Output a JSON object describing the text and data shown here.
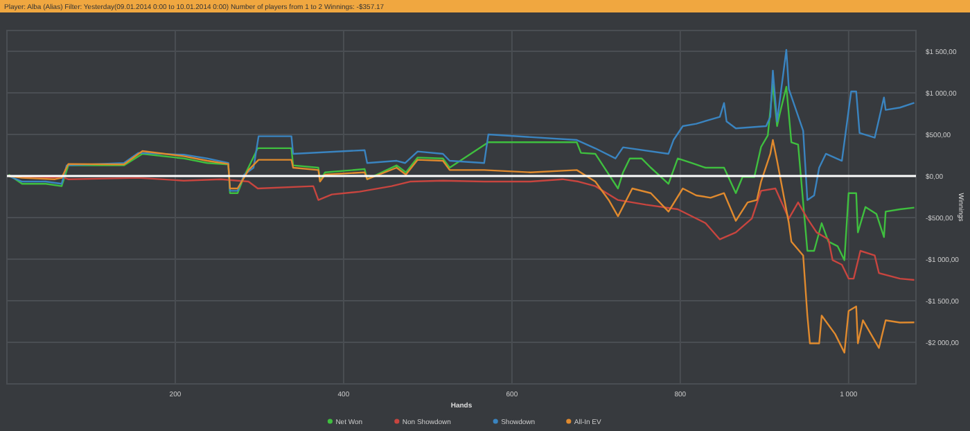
{
  "chart_data": {
    "type": "line",
    "title": "Player: Alba (Alias) Filter: Yesterday(09.01.2014 0:00 to 10.01.2014 0:00) Number of players from 1 to 2 Winnings: -$357.17",
    "xlabel": "Hands",
    "ylabel": "Winnings",
    "xlim": [
      0,
      1080
    ],
    "xticks": [
      200,
      400,
      600,
      800,
      {
        "value": 1000,
        "label": "1 000"
      }
    ],
    "ylim": [
      -2500,
      1750
    ],
    "yticks": [
      {
        "value": 1500,
        "label": "$1 500,00"
      },
      {
        "value": 1000,
        "label": "$1 000,00"
      },
      {
        "value": 500,
        "label": "$500,00"
      },
      {
        "value": 0,
        "label": "$0,00"
      },
      {
        "value": -500,
        "label": "-$500,00"
      },
      {
        "value": -1000,
        "label": "-$1 000,00"
      },
      {
        "value": -1500,
        "label": "-$1 500,00"
      },
      {
        "value": -2000,
        "label": "-$2 000,00"
      }
    ],
    "grid": true,
    "legend": "bottom",
    "line_style": "solid",
    "ref_lines": [
      {
        "axis": "y",
        "value": 0,
        "color": "#ffffff"
      }
    ],
    "series": [
      {
        "name": "Net Won",
        "color": "#3fbf3f",
        "x": [
          2,
          18,
          46,
          65,
          73,
          139,
          161,
          210,
          238,
          263,
          265,
          274,
          282,
          298,
          338,
          340,
          370,
          372,
          378,
          425,
          428,
          463,
          474,
          488,
          518,
          526,
          572,
          677,
          682,
          699,
          726,
          732,
          740,
          754,
          765,
          786,
          797,
          814,
          830,
          852,
          866,
          874,
          888,
          896,
          904,
          910,
          915,
          918,
          926,
          932,
          940,
          951,
          959,
          968,
          976,
          987,
          995,
          1000,
          1009,
          1011,
          1020,
          1033,
          1042,
          1044,
          1061,
          1078
        ],
        "values": [
          17,
          -94,
          -94,
          -122,
          128,
          128,
          267,
          211,
          156,
          139,
          -206,
          -206,
          0,
          334,
          334,
          128,
          100,
          -56,
          44,
          83,
          -39,
          128,
          44,
          222,
          211,
          100,
          406,
          406,
          278,
          267,
          -150,
          44,
          211,
          211,
          100,
          -94,
          211,
          156,
          100,
          100,
          -206,
          -11,
          -11,
          350,
          489,
          1101,
          600,
          740,
          1073,
          406,
          378,
          -900,
          -900,
          -567,
          -789,
          -845,
          -1012,
          -206,
          -206,
          -678,
          -372,
          -456,
          -734,
          -428,
          -400,
          -380
        ]
      },
      {
        "name": "Non Showdown",
        "color": "#c8453f",
        "x": [
          2,
          68,
          73,
          156,
          210,
          254,
          287,
          298,
          364,
          370,
          386,
          419,
          457,
          479,
          518,
          567,
          622,
          660,
          679,
          699,
          726,
          759,
          797,
          830,
          847,
          866,
          885,
          896,
          913,
          929,
          940,
          951,
          962,
          976,
          981,
          992,
          1000,
          1006,
          1014,
          1031,
          1036,
          1061,
          1078
        ],
        "values": [
          0,
          -22,
          -39,
          -22,
          -56,
          -39,
          -67,
          -150,
          -122,
          -289,
          -222,
          -189,
          -122,
          -67,
          -56,
          -67,
          -67,
          -39,
          -67,
          -122,
          -289,
          -345,
          -400,
          -567,
          -762,
          -678,
          -512,
          -178,
          -150,
          -512,
          -317,
          -512,
          -678,
          -762,
          -1012,
          -1067,
          -1234,
          -1234,
          -900,
          -956,
          -1167,
          -1234,
          -1250
        ]
      },
      {
        "name": "Showdown",
        "color": "#3a84c0",
        "x": [
          2,
          18,
          46,
          65,
          71,
          139,
          156,
          210,
          238,
          263,
          265,
          274,
          282,
          293,
          299,
          338,
          340,
          425,
          428,
          463,
          473,
          488,
          518,
          526,
          567,
          572,
          677,
          699,
          723,
          732,
          786,
          792,
          803,
          819,
          847,
          852,
          855,
          866,
          902,
          907,
          910,
          915,
          926,
          929,
          946,
          951,
          959,
          965,
          973,
          992,
          1003,
          1009,
          1013,
          1031,
          1042,
          1044,
          1061,
          1078
        ],
        "values": [
          0,
          -67,
          -67,
          -94,
          128,
          156,
          278,
          256,
          211,
          156,
          -178,
          -178,
          17,
          100,
          478,
          478,
          267,
          311,
          156,
          183,
          156,
          295,
          267,
          183,
          156,
          500,
          433,
          333,
          211,
          345,
          267,
          433,
          600,
          628,
          712,
          878,
          656,
          573,
          600,
          712,
          1268,
          656,
          1518,
          1045,
          545,
          -289,
          -233,
          100,
          267,
          183,
          1017,
          1017,
          517,
          461,
          945,
          795,
          823,
          880
        ]
      },
      {
        "name": "All-In EV",
        "color": "#e08a2e",
        "x": [
          2,
          18,
          57,
          65,
          73,
          139,
          161,
          210,
          238,
          263,
          265,
          274,
          287,
          299,
          338,
          340,
          370,
          372,
          378,
          425,
          428,
          463,
          474,
          488,
          518,
          526,
          567,
          622,
          677,
          699,
          715,
          726,
          743,
          765,
          786,
          803,
          819,
          836,
          852,
          866,
          880,
          891,
          896,
          907,
          910,
          915,
          929,
          932,
          946,
          951,
          954,
          965,
          968,
          984,
          995,
          1000,
          1009,
          1011,
          1017,
          1036,
          1044,
          1061,
          1078
        ],
        "values": [
          0,
          -22,
          -39,
          -22,
          145,
          139,
          300,
          239,
          183,
          145,
          -150,
          -150,
          72,
          195,
          195,
          100,
          72,
          -67,
          17,
          44,
          -39,
          100,
          17,
          195,
          183,
          72,
          72,
          44,
          72,
          -67,
          -289,
          -484,
          -150,
          -206,
          -428,
          -150,
          -233,
          -261,
          -206,
          -539,
          -317,
          -289,
          -67,
          267,
          434,
          183,
          -567,
          -789,
          -956,
          -1679,
          -2013,
          -2013,
          -1679,
          -1901,
          -2124,
          -1623,
          -1568,
          -2013,
          -1735,
          -2068,
          -1735,
          -1762,
          -1760
        ]
      }
    ]
  }
}
